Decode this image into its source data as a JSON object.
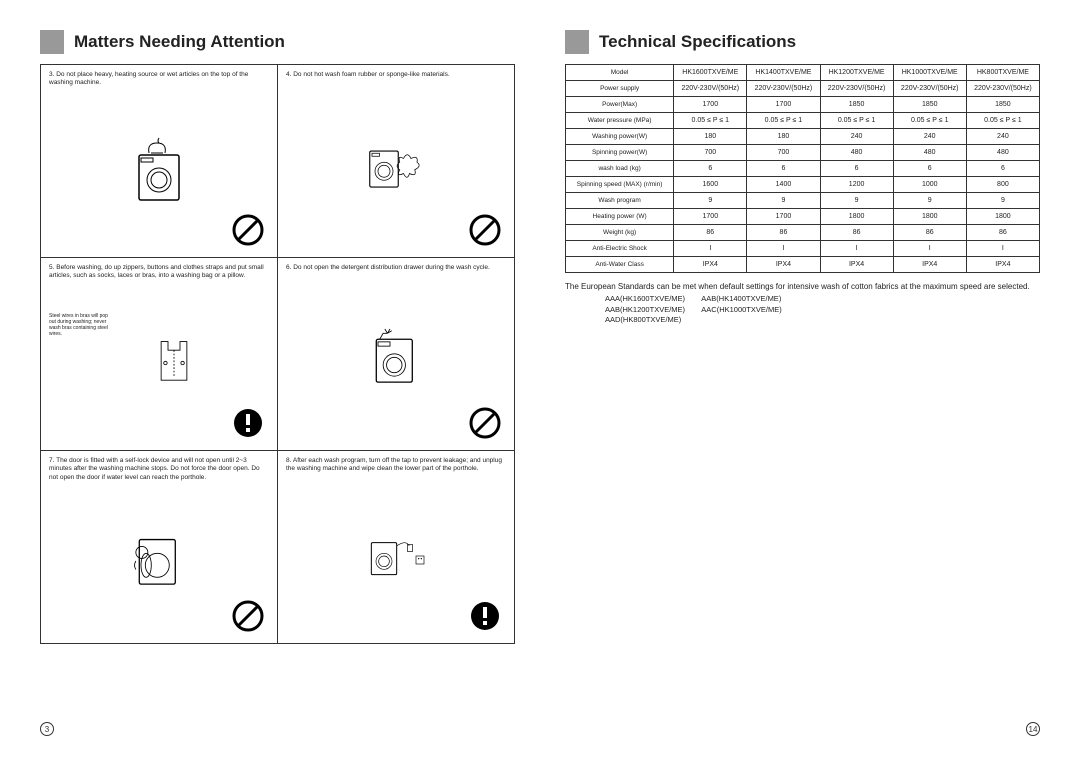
{
  "left": {
    "title": "Matters Needing Attention",
    "items": [
      {
        "n": "3.",
        "t": "Do not place heavy, heating source or wet articles on the top of the washing machine.",
        "icon": "prohibit",
        "tiny": ""
      },
      {
        "n": "4.",
        "t": "Do not hot wash foam rubber or sponge-like materials.",
        "icon": "prohibit",
        "tiny": ""
      },
      {
        "n": "5.",
        "t": "Before washing, do up zippers, buttons and clothes straps and put small articles, such as socks, laces or bras, into a washing bag or a pillow.",
        "icon": "alert",
        "tiny": "Steel wires in bras will pop out during washing; never wash bras containing steel wires."
      },
      {
        "n": "6.",
        "t": "Do not open the detergent distribution drawer during the wash cycle.",
        "icon": "prohibit",
        "tiny": ""
      },
      {
        "n": "7.",
        "t": "The door is fitted with a self-lock device and will not open until 2~3 minutes after the washing machine stops. Do not force the door open. Do not open the door if water level can reach the porthole.",
        "icon": "prohibit",
        "tiny": ""
      },
      {
        "n": "8.",
        "t": "After each wash program, turn off the tap to prevent leakage; and unplug the washing machine and wipe clean the lower part of the porthole.",
        "icon": "alert",
        "tiny": ""
      }
    ],
    "pagenum": "3"
  },
  "right": {
    "title": "Technical Specifications",
    "header": "Model",
    "models": [
      "HK1600TXVE/ME",
      "HK1400TXVE/ME",
      "HK1200TXVE/ME",
      "HK1000TXVE/ME",
      "HK800TXVE/ME"
    ],
    "rows": [
      {
        "l": "Power supply",
        "v": [
          "220V-230V/(50Hz)",
          "220V-230V/(50Hz)",
          "220V-230V/(50Hz)",
          "220V-230V/(50Hz)",
          "220V-230V/(50Hz)"
        ]
      },
      {
        "l": "Power(Max)",
        "v": [
          "1700",
          "1700",
          "1850",
          "1850",
          "1850"
        ]
      },
      {
        "l": "Water pressure (MPa)",
        "v": [
          "0.05 ≤ P ≤ 1",
          "0.05 ≤ P ≤ 1",
          "0.05 ≤ P ≤ 1",
          "0.05 ≤ P ≤ 1",
          "0.05 ≤ P ≤ 1"
        ]
      },
      {
        "l": "Washing power(W)",
        "v": [
          "180",
          "180",
          "240",
          "240",
          "240"
        ]
      },
      {
        "l": "Spinning power(W)",
        "v": [
          "700",
          "700",
          "480",
          "480",
          "480"
        ]
      },
      {
        "l": "wash load (kg)",
        "v": [
          "6",
          "6",
          "6",
          "6",
          "6"
        ]
      },
      {
        "l": "Spinning speed (MAX) (r/min)",
        "v": [
          "1600",
          "1400",
          "1200",
          "1000",
          "800"
        ]
      },
      {
        "l": "Wash program",
        "v": [
          "9",
          "9",
          "9",
          "9",
          "9"
        ]
      },
      {
        "l": "Heating power (W)",
        "v": [
          "1700",
          "1700",
          "1800",
          "1800",
          "1800"
        ]
      },
      {
        "l": "Weight (kg)",
        "v": [
          "86",
          "86",
          "86",
          "86",
          "86"
        ]
      },
      {
        "l": "Anti-Electric Shock",
        "v": [
          "I",
          "I",
          "I",
          "I",
          "I"
        ]
      },
      {
        "l": "Anti-Water Class",
        "v": [
          "IPX4",
          "IPX4",
          "IPX4",
          "IPX4",
          "IPX4"
        ]
      }
    ],
    "footnote": "The European Standards can be met when default settings for intensive wash of cotton fabrics at the maximum speed are selected.",
    "codes": [
      "AAA(HK1600TXVE/ME)        AAB(HK1400TXVE/ME)",
      "AAB(HK1200TXVE/ME)        AAC(HK1000TXVE/ME)",
      "AAD(HK800TXVE/ME)"
    ],
    "pagenum": "14"
  }
}
